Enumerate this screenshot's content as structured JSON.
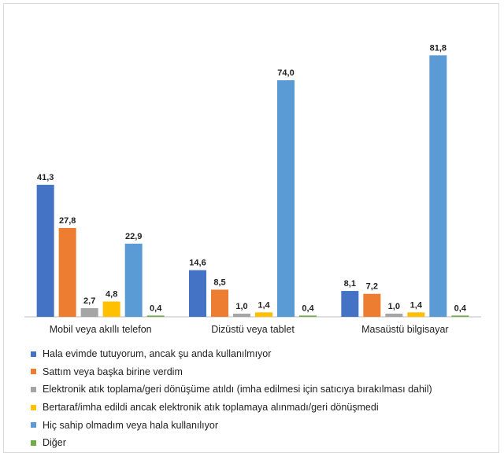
{
  "chart_data": {
    "type": "bar",
    "title": "",
    "xlabel": "",
    "ylabel": "",
    "ylim": [
      0,
      90
    ],
    "grid": false,
    "legend_position": "bottom",
    "categories": [
      "Mobil veya akıllı telefon",
      "Dizüstü veya tablet",
      "Masaüstü bilgisayar"
    ],
    "series": [
      {
        "name": "Hala evimde tutuyorum, ancak şu anda kullanılmıyor",
        "color": "#4472C4",
        "values": [
          41.3,
          14.6,
          8.1
        ],
        "labels": [
          "41,3",
          "14,6",
          "8,1"
        ]
      },
      {
        "name": "Sattım veya başka birine verdim",
        "color": "#ED7D31",
        "values": [
          27.8,
          8.5,
          7.2
        ],
        "labels": [
          "27,8",
          "8,5",
          "7,2"
        ]
      },
      {
        "name": "Elektronik atık toplama/geri dönüşüme atıldı (imha edilmesi için satıcıya bırakılması dahil)",
        "color": "#A5A5A5",
        "values": [
          2.7,
          1.0,
          1.0
        ],
        "labels": [
          "2,7",
          "1,0",
          "1,0"
        ]
      },
      {
        "name": "Bertaraf/imha edildi ancak elektronik atık toplamaya alınmadı/geri dönüşmedi",
        "color": "#FFC000",
        "values": [
          4.8,
          1.4,
          1.4
        ],
        "labels": [
          "4,8",
          "1,4",
          "1,4"
        ]
      },
      {
        "name": "Hiç sahip olmadım veya hala kullanılıyor",
        "color": "#5B9BD5",
        "values": [
          22.9,
          74.0,
          81.8
        ],
        "labels": [
          "22,9",
          "74,0",
          "81,8"
        ]
      },
      {
        "name": "Diğer",
        "color": "#70AD47",
        "values": [
          0.4,
          0.4,
          0.4
        ],
        "labels": [
          "0,4",
          "0,4",
          "0,4"
        ]
      }
    ]
  }
}
